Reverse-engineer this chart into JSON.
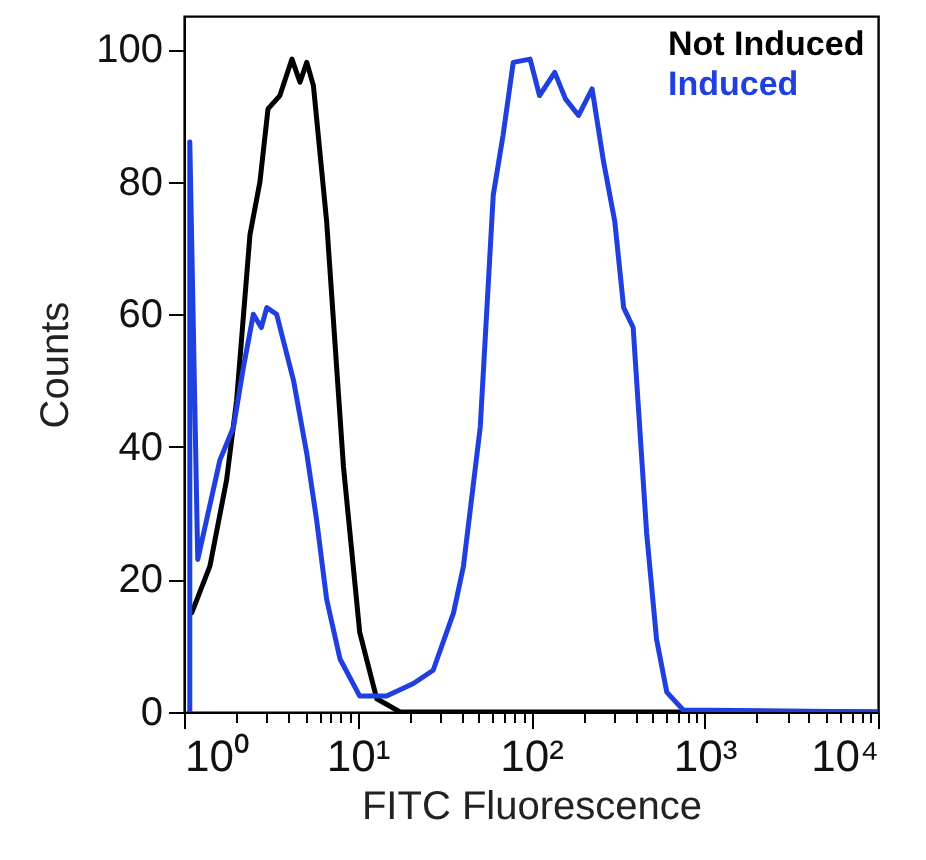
{
  "chart_data": {
    "type": "line",
    "xlabel": "FITC Fluorescence",
    "ylabel": "Counts",
    "log": "x",
    "xlim": [
      1,
      10000
    ],
    "ylim": [
      0,
      105
    ],
    "xticks": [
      {
        "value": 1,
        "label": "10⁰"
      },
      {
        "value": 2,
        "label": null
      },
      {
        "value": 3,
        "label": null
      },
      {
        "value": 4,
        "label": null
      },
      {
        "value": 5,
        "label": null
      },
      {
        "value": 6,
        "label": null
      },
      {
        "value": 7,
        "label": null
      },
      {
        "value": 8,
        "label": null
      },
      {
        "value": 9,
        "label": null
      },
      {
        "value": 10,
        "label": "10¹"
      },
      {
        "value": 20,
        "label": null
      },
      {
        "value": 30,
        "label": null
      },
      {
        "value": 40,
        "label": null
      },
      {
        "value": 50,
        "label": null
      },
      {
        "value": 60,
        "label": null
      },
      {
        "value": 70,
        "label": null
      },
      {
        "value": 80,
        "label": null
      },
      {
        "value": 90,
        "label": null
      },
      {
        "value": 100,
        "label": "10²"
      },
      {
        "value": 200,
        "label": null
      },
      {
        "value": 300,
        "label": null
      },
      {
        "value": 400,
        "label": null
      },
      {
        "value": 500,
        "label": null
      },
      {
        "value": 600,
        "label": null
      },
      {
        "value": 700,
        "label": null
      },
      {
        "value": 800,
        "label": null
      },
      {
        "value": 900,
        "label": null
      },
      {
        "value": 1000,
        "label": "10³"
      },
      {
        "value": 2000,
        "label": null
      },
      {
        "value": 3000,
        "label": null
      },
      {
        "value": 4000,
        "label": null
      },
      {
        "value": 5000,
        "label": null
      },
      {
        "value": 6000,
        "label": null
      },
      {
        "value": 7000,
        "label": null
      },
      {
        "value": 8000,
        "label": null
      },
      {
        "value": 9000,
        "label": null
      },
      {
        "value": 10000,
        "label": "10⁴"
      }
    ],
    "yticks": [
      0,
      20,
      40,
      60,
      80,
      100
    ],
    "grid": false,
    "legend": "top right",
    "series": [
      {
        "name": "Not Induced",
        "color": "#000000",
        "x": [
          1.11,
          1.41,
          1.76,
          2.01,
          2.4,
          2.74,
          3.05,
          3.57,
          4.19,
          4.66,
          5.1,
          5.57,
          6.64,
          8.3,
          10.3,
          12.9,
          17.6,
          10000
        ],
        "values": [
          15,
          22,
          35,
          47,
          72,
          80,
          91,
          93,
          98.5,
          95,
          98,
          94.5,
          74,
          37,
          12,
          2,
          0,
          0
        ]
      },
      {
        "name": "Induced",
        "color": "#1f3fe0",
        "x": [
          1.08,
          1.08,
          1.2,
          1.35,
          1.61,
          1.93,
          2.2,
          2.51,
          2.79,
          3,
          3.42,
          4.28,
          5.1,
          5.81,
          6.64,
          7.93,
          10.3,
          14.7,
          21,
          27.3,
          35.8,
          40.8,
          51,
          60.6,
          69,
          79,
          98.8,
          112,
          137,
          158,
          188,
          225,
          262,
          304,
          342,
          388,
          464,
          529,
          606,
          754,
          10000
        ],
        "values": [
          0,
          86,
          23,
          29,
          38,
          43,
          52,
          60,
          58,
          61,
          60,
          50,
          39,
          29,
          17,
          8,
          2.4,
          2.4,
          4.3,
          6.3,
          15,
          22,
          43,
          78,
          87,
          98,
          98.5,
          93,
          96.5,
          92.5,
          90,
          94,
          83,
          74,
          61,
          58,
          27,
          11,
          3,
          0.3,
          0
        ]
      }
    ]
  }
}
